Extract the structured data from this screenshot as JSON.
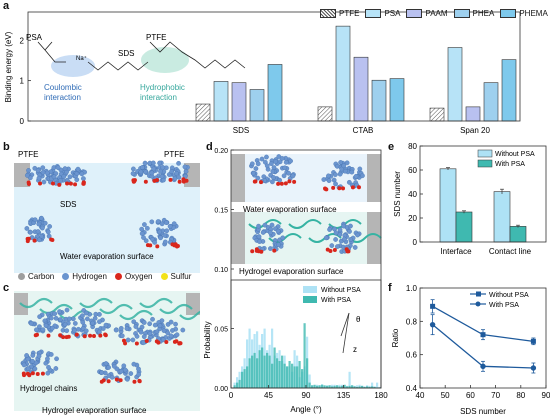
{
  "panels": {
    "a": "a",
    "b": "b",
    "c": "c",
    "d": "d",
    "e": "e",
    "f": "f"
  },
  "panel_a": {
    "schematic": {
      "psa": "PSA",
      "na": "Na⁺",
      "ptfe": "PTFE",
      "sds": "SDS",
      "coulombic": "Coulombic\ninteraction",
      "hydrophobic": "Hydrophobic\ninteraction"
    }
  },
  "panel_b": {
    "ptfe_left": "PTFE",
    "ptfe_right": "PTFE",
    "sds": "SDS",
    "surface": "Water evaporation surface"
  },
  "atom_legend": [
    "Carbon",
    "Hydrogen",
    "Oxygen",
    "Sulfur"
  ],
  "atom_colors": [
    "#9e9e9e",
    "#6b95cf",
    "#d9261c",
    "#f2e21a"
  ],
  "panel_c": {
    "chains": "Hydrogel chains",
    "surface": "Hydrogel evaporation surface"
  },
  "panel_d_labels": {
    "top": "Water evaporation surface",
    "bottom": "Hydrogel evaporation surface",
    "theta": "θ",
    "z": "z"
  },
  "colors": {
    "ptfe": "#ffffff",
    "psa": "#b7e3f7",
    "paam": "#b9c1f0",
    "phea": "#9ed0ee",
    "phema": "#7ec9ec",
    "without": "#aee2f5",
    "with": "#3fb9b0",
    "line": "#1e5a9c"
  },
  "chart_data": [
    {
      "id": "a",
      "type": "bar",
      "categories": [
        "SDS",
        "CTAB",
        "Span 20"
      ],
      "series": [
        {
          "name": "PTFE",
          "values": [
            0.42,
            0.35,
            0.32
          ]
        },
        {
          "name": "PSA",
          "values": [
            0.98,
            2.35,
            1.82
          ]
        },
        {
          "name": "PAAM",
          "values": [
            0.95,
            1.58,
            0.35
          ]
        },
        {
          "name": "PHEA",
          "values": [
            0.78,
            1.01,
            0.95
          ]
        },
        {
          "name": "PHEMA",
          "values": [
            1.4,
            1.05,
            1.52
          ]
        }
      ],
      "ylabel": "Binding energy (eV)",
      "ylim": [
        0,
        2.7
      ],
      "yticks": [
        0,
        1,
        2
      ]
    },
    {
      "id": "d",
      "type": "bar",
      "xlabel": "Angle (°)",
      "ylabel": "Probability",
      "xlim": [
        0,
        180
      ],
      "ylim": [
        0,
        0.2
      ],
      "xticks": [
        0,
        45,
        90,
        135,
        180
      ],
      "yticks": [
        0,
        0.05,
        0.1,
        0.15,
        0.2
      ],
      "bin_width": 3,
      "series": [
        {
          "name": "Without PSA",
          "values": [
            0.0,
            0.01,
            0.02,
            0.03,
            0.04,
            0.055,
            0.09,
            0.11,
            0.09,
            0.1,
            0.105,
            0.08,
            0.1,
            0.11,
            0.07,
            0.08,
            0.11,
            0.06,
            0.065,
            0.07,
            0.05,
            0.06,
            0.04,
            0.04,
            0.03,
            0.07,
            0.06,
            0.02,
            0.03,
            0.04,
            0.095,
            0.025,
            0.005,
            0.005,
            0.006,
            0.005,
            0.007,
            0.004,
            0.005,
            0.005,
            0.006,
            0.006,
            0.005,
            0.006,
            0.006,
            0.005,
            0.004,
            0.03,
            0.005,
            0.004,
            0.005,
            0.006,
            0.004,
            0.003,
            0.005,
            0.004,
            0.01,
            0.003,
            0.01,
            0.002
          ]
        },
        {
          "name": "With PSA",
          "values": [
            0.0,
            0.005,
            0.01,
            0.015,
            0.03,
            0.035,
            0.04,
            0.055,
            0.06,
            0.065,
            0.055,
            0.07,
            0.075,
            0.06,
            0.065,
            0.06,
            0.045,
            0.075,
            0.055,
            0.05,
            0.06,
            0.045,
            0.04,
            0.05,
            0.045,
            0.04,
            0.04,
            0.05,
            0.035,
            0.12,
            0.055,
            0.01,
            0.005,
            0.006,
            0.004,
            0.005,
            0.006,
            0.005,
            0.004,
            0.005,
            0.003,
            0.004,
            0.005,
            0.003,
            0.004,
            0.006,
            0.003,
            0.004,
            0.005,
            0.003,
            0.002,
            0.003,
            0.004,
            0.002,
            0.003,
            0.002,
            0.003,
            0.002,
            0.001,
            0.001
          ]
        }
      ]
    },
    {
      "id": "e",
      "type": "bar",
      "categories": [
        "Interface",
        "Contact line"
      ],
      "series": [
        {
          "name": "Without PSA",
          "values": [
            61,
            42
          ],
          "errors": [
            1,
            2
          ]
        },
        {
          "name": "With PSA",
          "values": [
            25,
            13
          ],
          "errors": [
            1,
            1
          ]
        }
      ],
      "ylabel": "SDS number",
      "ylim": [
        0,
        80
      ],
      "yticks": [
        0,
        20,
        40,
        60,
        80
      ]
    },
    {
      "id": "f",
      "type": "line",
      "x": [
        45,
        65,
        85
      ],
      "series": [
        {
          "name": "Without PSA",
          "values": [
            0.89,
            0.72,
            0.68
          ],
          "errors": [
            0.04,
            0.03,
            0.02
          ],
          "marker": "square"
        },
        {
          "name": "With PSA",
          "values": [
            0.78,
            0.53,
            0.52
          ],
          "errors": [
            0.06,
            0.03,
            0.03
          ],
          "marker": "circle"
        }
      ],
      "xlabel": "SDS number",
      "ylabel": "Ratio",
      "xlim": [
        40,
        90
      ],
      "ylim": [
        0.4,
        1.0
      ],
      "xticks": [
        40,
        50,
        60,
        70,
        80,
        90
      ],
      "yticks": [
        0.4,
        0.6,
        0.8,
        1.0
      ]
    }
  ]
}
